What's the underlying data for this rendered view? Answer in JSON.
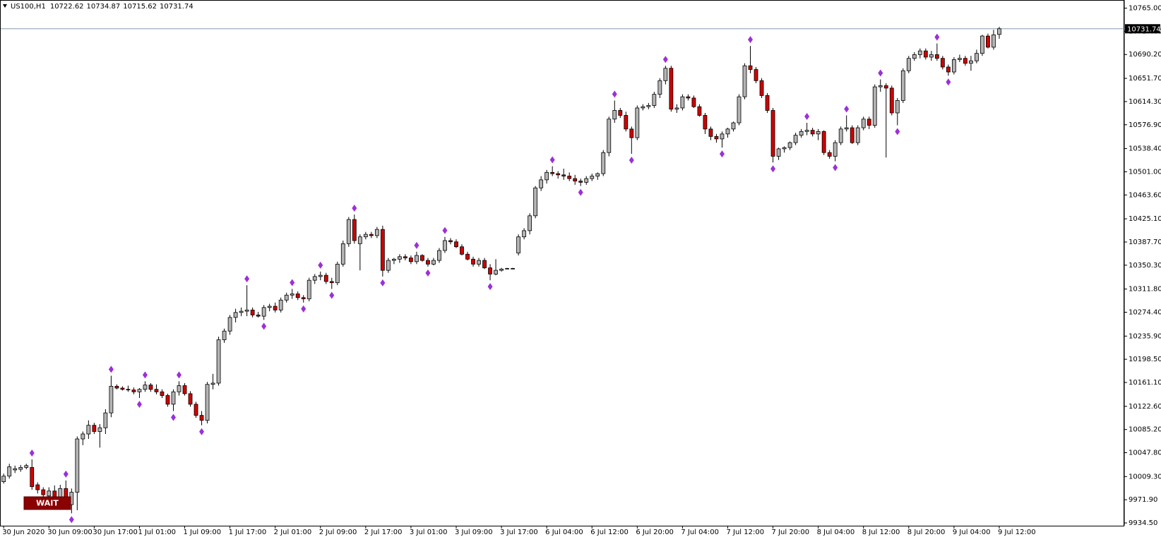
{
  "chart_data": {
    "type": "candlestick",
    "symbol": "US100,H1",
    "annotation": "WAIT",
    "colors": {
      "up": "#b4b4b4",
      "down": "#d00000",
      "fractal": "#9b30d9",
      "price_line": "#8a9aac"
    },
    "ylim": [
      9930,
      10777
    ],
    "yticks": [
      {
        "value": 9934.5,
        "label": "9934.50"
      },
      {
        "value": 9971.9,
        "label": "9971.90"
      },
      {
        "value": 10009.3,
        "label": "10009.30"
      },
      {
        "value": 10047.8,
        "label": "10047.80"
      },
      {
        "value": 10085.2,
        "label": "10085.20"
      },
      {
        "value": 10122.6,
        "label": "10122.60"
      },
      {
        "value": 10161.1,
        "label": "10161.10"
      },
      {
        "value": 10198.5,
        "label": "10198.50"
      },
      {
        "value": 10235.9,
        "label": "10235.90"
      },
      {
        "value": 10274.4,
        "label": "10274.40"
      },
      {
        "value": 10311.8,
        "label": "10311.80"
      },
      {
        "value": 10350.3,
        "label": "10350.30"
      },
      {
        "value": 10387.7,
        "label": "10387.70"
      },
      {
        "value": 10425.1,
        "label": "10425.10"
      },
      {
        "value": 10463.6,
        "label": "10463.60"
      },
      {
        "value": 10501,
        "label": "10501.00"
      },
      {
        "value": 10538.4,
        "label": "10538.40"
      },
      {
        "value": 10576.9,
        "label": "10576.90"
      },
      {
        "value": 10614.3,
        "label": "10614.30"
      },
      {
        "value": 10651.7,
        "label": "10651.70"
      },
      {
        "value": 10690.2,
        "label": "10690.20"
      },
      {
        "value": 10727.6,
        "label": "10727.60"
      },
      {
        "value": 10765,
        "label": "10765.00"
      }
    ],
    "categories": [
      "30 Jun 2020",
      null,
      null,
      null,
      null,
      null,
      null,
      null,
      "30 Jun 09:00",
      null,
      null,
      null,
      null,
      null,
      null,
      null,
      "30 Jun 17:00",
      null,
      null,
      null,
      null,
      null,
      null,
      null,
      "1 Jul 01:00",
      null,
      null,
      null,
      null,
      null,
      null,
      null,
      "1 Jul 09:00",
      null,
      null,
      null,
      null,
      null,
      null,
      null,
      "1 Jul 17:00",
      null,
      null,
      null,
      null,
      null,
      null,
      null,
      "2 Jul 01:00",
      null,
      null,
      null,
      null,
      null,
      null,
      null,
      "2 Jul 09:00",
      null,
      null,
      null,
      null,
      null,
      null,
      null,
      "2 Jul 17:00",
      null,
      null,
      null,
      null,
      null,
      null,
      null,
      "3 Jul 01:00",
      null,
      null,
      null,
      null,
      null,
      null,
      null,
      "3 Jul 09:00",
      null,
      null,
      null,
      null,
      null,
      null,
      null,
      "3 Jul 17:00",
      null,
      null,
      null,
      null,
      null,
      null,
      null,
      "6 Jul 04:00",
      null,
      null,
      null,
      null,
      null,
      null,
      null,
      "6 Jul 12:00",
      null,
      null,
      null,
      null,
      null,
      null,
      null,
      "6 Jul 20:00",
      null,
      null,
      null,
      null,
      null,
      null,
      null,
      "7 Jul 04:00",
      null,
      null,
      null,
      null,
      null,
      null,
      null,
      "7 Jul 12:00",
      null,
      null,
      null,
      null,
      null,
      null,
      null,
      "7 Jul 20:00",
      null,
      null,
      null,
      null,
      null,
      null,
      null,
      "8 Jul 04:00",
      null,
      null,
      null,
      null,
      null,
      null,
      null,
      "8 Jul 12:00",
      null,
      null,
      null,
      null,
      null,
      null,
      null,
      "8 Jul 20:00",
      null,
      null,
      null,
      null,
      null,
      null,
      null,
      "9 Jul 04:00",
      null,
      null,
      null,
      null,
      null,
      null,
      null,
      "9 Jul 12:00"
    ],
    "candles": [
      [
        10001,
        10014,
        9998,
        10010
      ],
      [
        10010,
        10030,
        10006,
        10025
      ],
      [
        10020,
        10027,
        10015,
        10022
      ],
      [
        10021,
        10028,
        10017,
        10024
      ],
      [
        10024,
        10030,
        10021,
        10027
      ],
      [
        10024,
        10037,
        9988,
        9993
      ],
      [
        9996,
        10000,
        9982,
        9988
      ],
      [
        9988,
        9992,
        9972,
        9980
      ],
      [
        9978,
        9992,
        9968,
        9986
      ],
      [
        9986,
        9995,
        9970,
        9976
      ],
      [
        9976,
        9996,
        9968,
        9990
      ],
      [
        9990,
        10003,
        9958,
        9966
      ],
      [
        9964,
        9990,
        9950,
        9984
      ],
      [
        9984,
        10074,
        9955,
        10070
      ],
      [
        10070,
        10082,
        10060,
        10078
      ],
      [
        10078,
        10100,
        10070,
        10092
      ],
      [
        10092,
        10096,
        10078,
        10082
      ],
      [
        10082,
        10094,
        10056,
        10088
      ],
      [
        10088,
        10118,
        10078,
        10112
      ],
      [
        10112,
        10172,
        10105,
        10155
      ],
      [
        10155,
        10158,
        10150,
        10152
      ],
      [
        10152,
        10155,
        10148,
        10150
      ],
      [
        10150,
        10156,
        10146,
        10149
      ],
      [
        10149,
        10153,
        10142,
        10146
      ],
      [
        10146,
        10152,
        10136,
        10150
      ],
      [
        10150,
        10163,
        10146,
        10157
      ],
      [
        10157,
        10160,
        10146,
        10150
      ],
      [
        10150,
        10158,
        10142,
        10146
      ],
      [
        10146,
        10150,
        10136,
        10140
      ],
      [
        10140,
        10143,
        10122,
        10126
      ],
      [
        10126,
        10150,
        10115,
        10146
      ],
      [
        10146,
        10163,
        10140,
        10156
      ],
      [
        10156,
        10160,
        10140,
        10143
      ],
      [
        10143,
        10147,
        10122,
        10126
      ],
      [
        10126,
        10130,
        10104,
        10108
      ],
      [
        10108,
        10115,
        10092,
        10100
      ],
      [
        10100,
        10162,
        10095,
        10158
      ],
      [
        10158,
        10175,
        10150,
        10160
      ],
      [
        10160,
        10235,
        10156,
        10230
      ],
      [
        10230,
        10248,
        10225,
        10244
      ],
      [
        10244,
        10270,
        10238,
        10266
      ],
      [
        10266,
        10280,
        10258,
        10274
      ],
      [
        10274,
        10282,
        10268,
        10276
      ],
      [
        10276,
        10318,
        10268,
        10278
      ],
      [
        10278,
        10282,
        10266,
        10270
      ],
      [
        10270,
        10275,
        10266,
        10268
      ],
      [
        10268,
        10286,
        10262,
        10282
      ],
      [
        10282,
        10288,
        10276,
        10284
      ],
      [
        10284,
        10290,
        10274,
        10278
      ],
      [
        10278,
        10298,
        10274,
        10294
      ],
      [
        10294,
        10306,
        10290,
        10302
      ],
      [
        10302,
        10312,
        10296,
        10304
      ],
      [
        10304,
        10308,
        10294,
        10298
      ],
      [
        10298,
        10302,
        10290,
        10296
      ],
      [
        10296,
        10330,
        10292,
        10326
      ],
      [
        10326,
        10336,
        10320,
        10332
      ],
      [
        10332,
        10340,
        10326,
        10334
      ],
      [
        10334,
        10338,
        10320,
        10324
      ],
      [
        10324,
        10330,
        10312,
        10322
      ],
      [
        10322,
        10356,
        10318,
        10352
      ],
      [
        10352,
        10390,
        10348,
        10385
      ],
      [
        10385,
        10428,
        10380,
        10424
      ],
      [
        10424,
        10432,
        10385,
        10390
      ],
      [
        10385,
        10400,
        10342,
        10396
      ],
      [
        10396,
        10404,
        10392,
        10400
      ],
      [
        10400,
        10404,
        10394,
        10398
      ],
      [
        10398,
        10412,
        10394,
        10408
      ],
      [
        10408,
        10414,
        10332,
        10342
      ],
      [
        10342,
        10362,
        10338,
        10358
      ],
      [
        10358,
        10362,
        10352,
        10360
      ],
      [
        10360,
        10368,
        10354,
        10364
      ],
      [
        10364,
        10368,
        10358,
        10362
      ],
      [
        10362,
        10366,
        10352,
        10356
      ],
      [
        10356,
        10372,
        10352,
        10366
      ],
      [
        10366,
        10368,
        10356,
        10358
      ],
      [
        10358,
        10362,
        10348,
        10352
      ],
      [
        10352,
        10362,
        10350,
        10358
      ],
      [
        10358,
        10378,
        10354,
        10374
      ],
      [
        10374,
        10396,
        10370,
        10390
      ],
      [
        10390,
        10394,
        10384,
        10388
      ],
      [
        10388,
        10392,
        10378,
        10380
      ],
      [
        10380,
        10384,
        10366,
        10368
      ],
      [
        10368,
        10372,
        10358,
        10360
      ],
      [
        10360,
        10364,
        10348,
        10352
      ],
      [
        10352,
        10362,
        10348,
        10358
      ],
      [
        10358,
        10362,
        10344,
        10346
      ],
      [
        10346,
        10352,
        10326,
        10336
      ],
      [
        10336,
        10360,
        10334,
        10342
      ],
      [
        10342,
        10346,
        10340,
        10344
      ],
      [
        10345,
        10346,
        10344,
        10345
      ],
      [
        10345,
        10346,
        10344,
        10345
      ],
      [
        10370,
        10400,
        10366,
        10396
      ],
      [
        10396,
        10410,
        10392,
        10406
      ],
      [
        10406,
        10434,
        10400,
        10430
      ],
      [
        10430,
        10478,
        10426,
        10475
      ],
      [
        10475,
        10494,
        10470,
        10488
      ],
      [
        10488,
        10504,
        10482,
        10500
      ],
      [
        10500,
        10510,
        10494,
        10498
      ],
      [
        10498,
        10502,
        10490,
        10496
      ],
      [
        10496,
        10506,
        10488,
        10494
      ],
      [
        10494,
        10500,
        10486,
        10490
      ],
      [
        10490,
        10496,
        10480,
        10486
      ],
      [
        10486,
        10490,
        10478,
        10484
      ],
      [
        10484,
        10494,
        10480,
        10490
      ],
      [
        10490,
        10498,
        10486,
        10494
      ],
      [
        10494,
        10500,
        10488,
        10498
      ],
      [
        10498,
        10536,
        10494,
        10532
      ],
      [
        10532,
        10590,
        10526,
        10586
      ],
      [
        10586,
        10616,
        10580,
        10600
      ],
      [
        10600,
        10604,
        10588,
        10592
      ],
      [
        10592,
        10598,
        10566,
        10570
      ],
      [
        10570,
        10574,
        10530,
        10556
      ],
      [
        10556,
        10608,
        10552,
        10604
      ],
      [
        10604,
        10610,
        10600,
        10606
      ],
      [
        10606,
        10612,
        10602,
        10608
      ],
      [
        10608,
        10630,
        10604,
        10626
      ],
      [
        10626,
        10652,
        10620,
        10648
      ],
      [
        10648,
        10672,
        10642,
        10668
      ],
      [
        10668,
        10672,
        10598,
        10602
      ],
      [
        10602,
        10610,
        10596,
        10604
      ],
      [
        10604,
        10626,
        10600,
        10622
      ],
      [
        10622,
        10626,
        10616,
        10620
      ],
      [
        10620,
        10624,
        10604,
        10606
      ],
      [
        10606,
        10610,
        10590,
        10592
      ],
      [
        10592,
        10596,
        10562,
        10570
      ],
      [
        10570,
        10574,
        10552,
        10558
      ],
      [
        10558,
        10562,
        10548,
        10554
      ],
      [
        10554,
        10566,
        10540,
        10562
      ],
      [
        10562,
        10572,
        10556,
        10570
      ],
      [
        10570,
        10582,
        10566,
        10580
      ],
      [
        10580,
        10626,
        10576,
        10622
      ],
      [
        10622,
        10676,
        10618,
        10672
      ],
      [
        10672,
        10704,
        10660,
        10666
      ],
      [
        10666,
        10670,
        10644,
        10648
      ],
      [
        10648,
        10652,
        10620,
        10624
      ],
      [
        10624,
        10628,
        10596,
        10600
      ],
      [
        10600,
        10604,
        10516,
        10526
      ],
      [
        10526,
        10540,
        10520,
        10538
      ],
      [
        10538,
        10542,
        10532,
        10540
      ],
      [
        10540,
        10550,
        10536,
        10548
      ],
      [
        10548,
        10564,
        10544,
        10560
      ],
      [
        10560,
        10570,
        10556,
        10566
      ],
      [
        10566,
        10580,
        10560,
        10568
      ],
      [
        10568,
        10572,
        10558,
        10562
      ],
      [
        10562,
        10570,
        10552,
        10566
      ],
      [
        10566,
        10568,
        10528,
        10532
      ],
      [
        10532,
        10536,
        10522,
        10526
      ],
      [
        10526,
        10552,
        10518,
        10548
      ],
      [
        10548,
        10574,
        10544,
        10570
      ],
      [
        10570,
        10592,
        10566,
        10572
      ],
      [
        10572,
        10576,
        10546,
        10548
      ],
      [
        10548,
        10576,
        10544,
        10572
      ],
      [
        10572,
        10590,
        10568,
        10586
      ],
      [
        10586,
        10590,
        10570,
        10576
      ],
      [
        10576,
        10642,
        10572,
        10638
      ],
      [
        10638,
        10650,
        10630,
        10640
      ],
      [
        10640,
        10644,
        10524,
        10636
      ],
      [
        10636,
        10640,
        10592,
        10596
      ],
      [
        10596,
        10620,
        10576,
        10616
      ],
      [
        10616,
        10668,
        10612,
        10664
      ],
      [
        10664,
        10688,
        10660,
        10684
      ],
      [
        10684,
        10694,
        10680,
        10690
      ],
      [
        10690,
        10700,
        10684,
        10696
      ],
      [
        10696,
        10700,
        10682,
        10686
      ],
      [
        10686,
        10696,
        10680,
        10690
      ],
      [
        10690,
        10708,
        10680,
        10684
      ],
      [
        10684,
        10688,
        10666,
        10670
      ],
      [
        10670,
        10674,
        10656,
        10662
      ],
      [
        10662,
        10686,
        10658,
        10682
      ],
      [
        10682,
        10690,
        10678,
        10684
      ],
      [
        10684,
        10688,
        10672,
        10676
      ],
      [
        10676,
        10688,
        10664,
        10680
      ],
      [
        10680,
        10698,
        10676,
        10692
      ],
      [
        10692,
        10722,
        10688,
        10720
      ],
      [
        10720,
        10724,
        10700,
        10702
      ],
      [
        10702,
        10730,
        10698,
        10722
      ],
      [
        10722.62,
        10734.87,
        10715.62,
        10731.74
      ]
    ],
    "fractals": {
      "up": [
        5,
        11,
        19,
        25,
        31,
        43,
        51,
        56,
        62,
        73,
        78,
        97,
        108,
        117,
        132,
        142,
        149,
        155,
        165
      ],
      "down": [
        12,
        24,
        30,
        35,
        46,
        53,
        58,
        67,
        75,
        86,
        102,
        111,
        127,
        136,
        147,
        158,
        167
      ]
    }
  }
}
